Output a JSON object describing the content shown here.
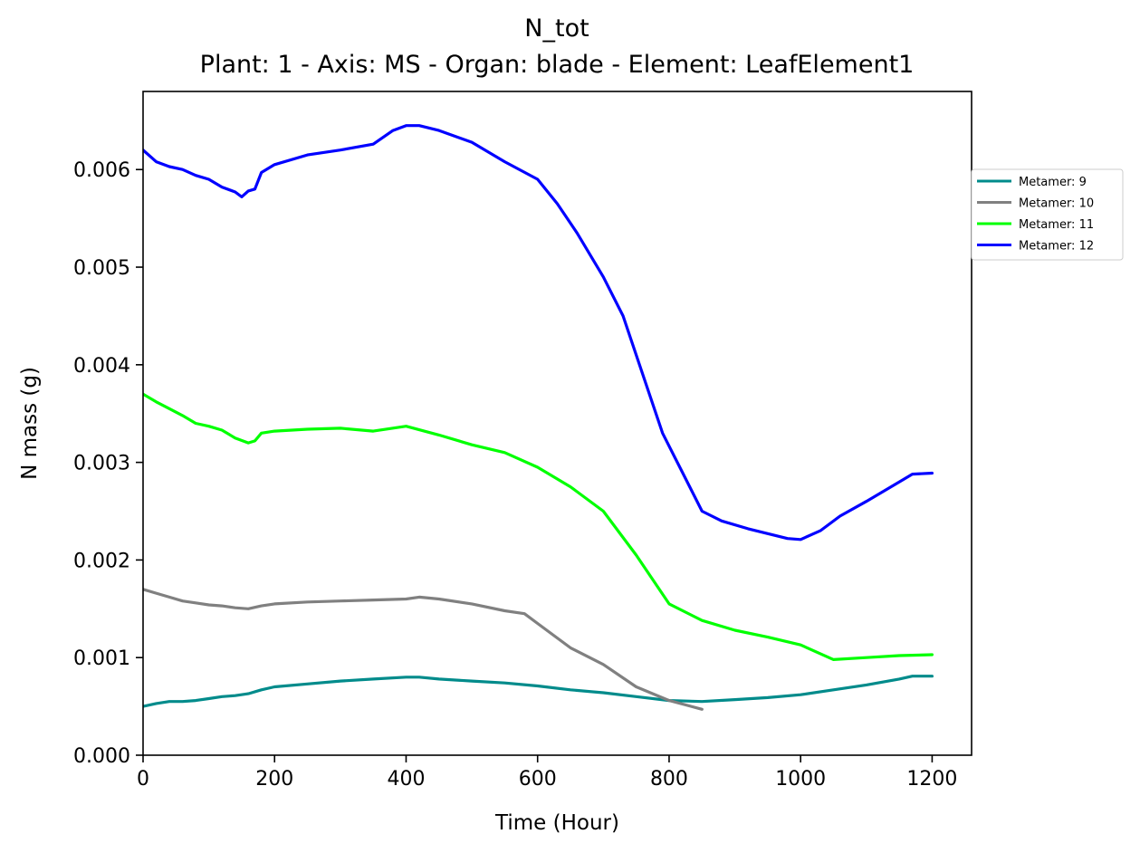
{
  "chart_data": {
    "type": "line",
    "title": "N_tot",
    "subtitle": "Plant: 1 - Axis: MS - Organ: blade - Element: LeafElement1",
    "xlabel": "Time (Hour)",
    "ylabel": "N mass (g)",
    "xlim": [
      0,
      1260
    ],
    "ylim": [
      0,
      0.0068
    ],
    "xticks": [
      0,
      200,
      400,
      600,
      800,
      1000,
      1200
    ],
    "xtick_labels": [
      "0",
      "200",
      "400",
      "600",
      "800",
      "1000",
      "1200"
    ],
    "yticks": [
      0,
      0.001,
      0.002,
      0.003,
      0.004,
      0.005,
      0.006
    ],
    "ytick_labels": [
      "0.000",
      "0.001",
      "0.002",
      "0.003",
      "0.004",
      "0.005",
      "0.006"
    ],
    "grid": false,
    "legend_position": "outside-right",
    "series": [
      {
        "name": "Metamer: 9",
        "color": "#008b8b",
        "x": [
          0,
          20,
          40,
          60,
          80,
          100,
          120,
          140,
          160,
          180,
          200,
          250,
          300,
          350,
          400,
          420,
          450,
          500,
          550,
          600,
          650,
          700,
          750,
          800,
          850,
          900,
          950,
          1000,
          1050,
          1100,
          1150,
          1170,
          1200
        ],
        "y": [
          0.0005,
          0.00053,
          0.00055,
          0.00055,
          0.00056,
          0.00058,
          0.0006,
          0.00061,
          0.00063,
          0.00067,
          0.0007,
          0.00073,
          0.00076,
          0.00078,
          0.0008,
          0.0008,
          0.00078,
          0.00076,
          0.00074,
          0.00071,
          0.00067,
          0.00064,
          0.0006,
          0.00056,
          0.00055,
          0.00057,
          0.00059,
          0.00062,
          0.00067,
          0.00072,
          0.00078,
          0.00081,
          0.00081
        ]
      },
      {
        "name": "Metamer: 10",
        "color": "#808080",
        "x": [
          0,
          20,
          40,
          60,
          80,
          100,
          120,
          140,
          160,
          180,
          200,
          250,
          300,
          350,
          400,
          420,
          450,
          500,
          550,
          580,
          600,
          650,
          700,
          750,
          800,
          850
        ],
        "y": [
          0.0017,
          0.00166,
          0.00162,
          0.00158,
          0.00156,
          0.00154,
          0.00153,
          0.00151,
          0.0015,
          0.00153,
          0.00155,
          0.00157,
          0.00158,
          0.00159,
          0.0016,
          0.00162,
          0.0016,
          0.00155,
          0.00148,
          0.00145,
          0.00135,
          0.0011,
          0.00093,
          0.0007,
          0.00056,
          0.00047
        ]
      },
      {
        "name": "Metamer: 11",
        "color": "#00ff00",
        "x": [
          0,
          20,
          40,
          60,
          80,
          100,
          120,
          140,
          160,
          170,
          180,
          200,
          250,
          300,
          350,
          400,
          450,
          500,
          550,
          600,
          650,
          700,
          750,
          800,
          850,
          900,
          950,
          1000,
          1050,
          1100,
          1150,
          1200
        ],
        "y": [
          0.0037,
          0.00362,
          0.00355,
          0.00348,
          0.0034,
          0.00337,
          0.00333,
          0.00325,
          0.0032,
          0.00322,
          0.0033,
          0.00332,
          0.00334,
          0.00335,
          0.00332,
          0.00337,
          0.00328,
          0.00318,
          0.0031,
          0.00295,
          0.00275,
          0.0025,
          0.00205,
          0.00155,
          0.00138,
          0.00128,
          0.00121,
          0.00113,
          0.00098,
          0.001,
          0.00102,
          0.00103
        ]
      },
      {
        "name": "Metamer: 12",
        "color": "#0000ff",
        "x": [
          0,
          20,
          40,
          60,
          80,
          100,
          120,
          140,
          150,
          160,
          170,
          180,
          200,
          250,
          300,
          350,
          380,
          400,
          420,
          450,
          500,
          550,
          600,
          630,
          660,
          700,
          730,
          760,
          790,
          820,
          850,
          880,
          920,
          950,
          980,
          1000,
          1030,
          1060,
          1100,
          1150,
          1170,
          1200
        ],
        "y": [
          0.0062,
          0.00608,
          0.00603,
          0.006,
          0.00594,
          0.0059,
          0.00582,
          0.00577,
          0.00572,
          0.00578,
          0.0058,
          0.00597,
          0.00605,
          0.00615,
          0.0062,
          0.00626,
          0.0064,
          0.00645,
          0.00645,
          0.0064,
          0.00628,
          0.00608,
          0.0059,
          0.00565,
          0.00535,
          0.0049,
          0.0045,
          0.0039,
          0.0033,
          0.0029,
          0.0025,
          0.0024,
          0.00232,
          0.00227,
          0.00222,
          0.00221,
          0.0023,
          0.00245,
          0.0026,
          0.0028,
          0.00288,
          0.00289
        ]
      }
    ]
  }
}
